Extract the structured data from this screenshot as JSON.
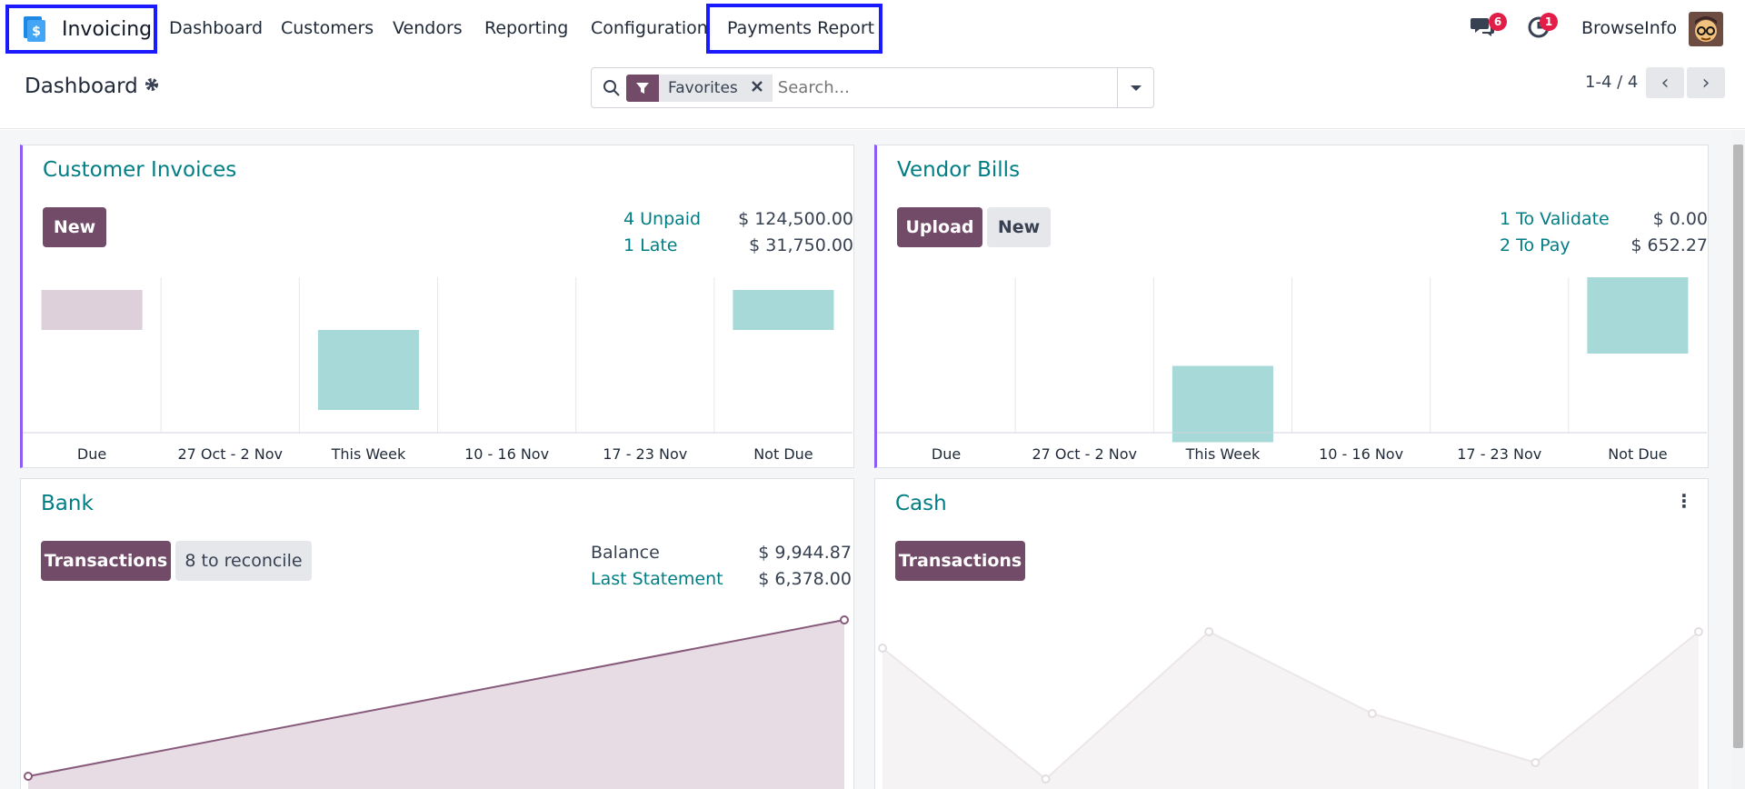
{
  "nav": {
    "app_name": "Invoicing",
    "items": [
      "Dashboard",
      "Customers",
      "Vendors",
      "Reporting",
      "Configuration"
    ],
    "payments_report": "Payments Report",
    "messages_count": "6",
    "activities_count": "1",
    "company": "BrowseInfo"
  },
  "control_panel": {
    "title": "Dashboard",
    "facet": "Favorites",
    "search_placeholder": "Search...",
    "pager": "1-4 / 4"
  },
  "cards": {
    "customer_invoices": {
      "title": "Customer Invoices",
      "new_label": "New",
      "stats": [
        {
          "label": "4 Unpaid",
          "amount": "$ 124,500.00"
        },
        {
          "label": "1 Late",
          "amount": "$ 31,750.00"
        }
      ]
    },
    "vendor_bills": {
      "title": "Vendor Bills",
      "upload_label": "Upload",
      "new_label": "New",
      "stats": [
        {
          "label": "1 To Validate",
          "amount": "$ 0.00"
        },
        {
          "label": "2 To Pay",
          "amount": "$ 652.27"
        }
      ]
    },
    "bank": {
      "title": "Bank",
      "transactions_label": "Transactions",
      "reconcile_label": "8 to reconcile",
      "stats": [
        {
          "label": "Balance",
          "amount": "$ 9,944.87"
        },
        {
          "label": "Last Statement",
          "amount": "$ 6,378.00"
        }
      ]
    },
    "cash": {
      "title": "Cash",
      "transactions_label": "Transactions"
    }
  },
  "chart_data": [
    {
      "type": "bar",
      "categories": [
        "Due",
        "27 Oct - 2 Nov",
        "This Week",
        "10 - 16 Nov",
        "17 - 23 Nov",
        "Not Due"
      ],
      "values": [
        1,
        0,
        2,
        0,
        0,
        1
      ],
      "colors": [
        "#ddd0da",
        "#a7d9d8",
        "#a7d9d8",
        "#a7d9d8",
        "#a7d9d8",
        "#a7d9d8"
      ]
    },
    {
      "type": "bar",
      "categories": [
        "Due",
        "27 Oct - 2 Nov",
        "This Week",
        "10 - 16 Nov",
        "17 - 23 Nov",
        "Not Due"
      ],
      "values": [
        0,
        0,
        2,
        0,
        0,
        2
      ],
      "colors": [
        "#a7d9d8",
        "#a7d9d8",
        "#a7d9d8",
        "#a7d9d8",
        "#a7d9d8",
        "#a7d9d8"
      ]
    },
    {
      "type": "area",
      "values": [
        0,
        1
      ],
      "color": "#875a7b"
    },
    {
      "type": "area",
      "values": [
        0.8,
        0,
        0.9,
        0.4,
        0.1,
        0.9
      ],
      "color": "#e5dfe3"
    }
  ],
  "colors": {
    "brand": "#714b67",
    "link": "#017e84",
    "highlight_box": "#1a1aff"
  }
}
